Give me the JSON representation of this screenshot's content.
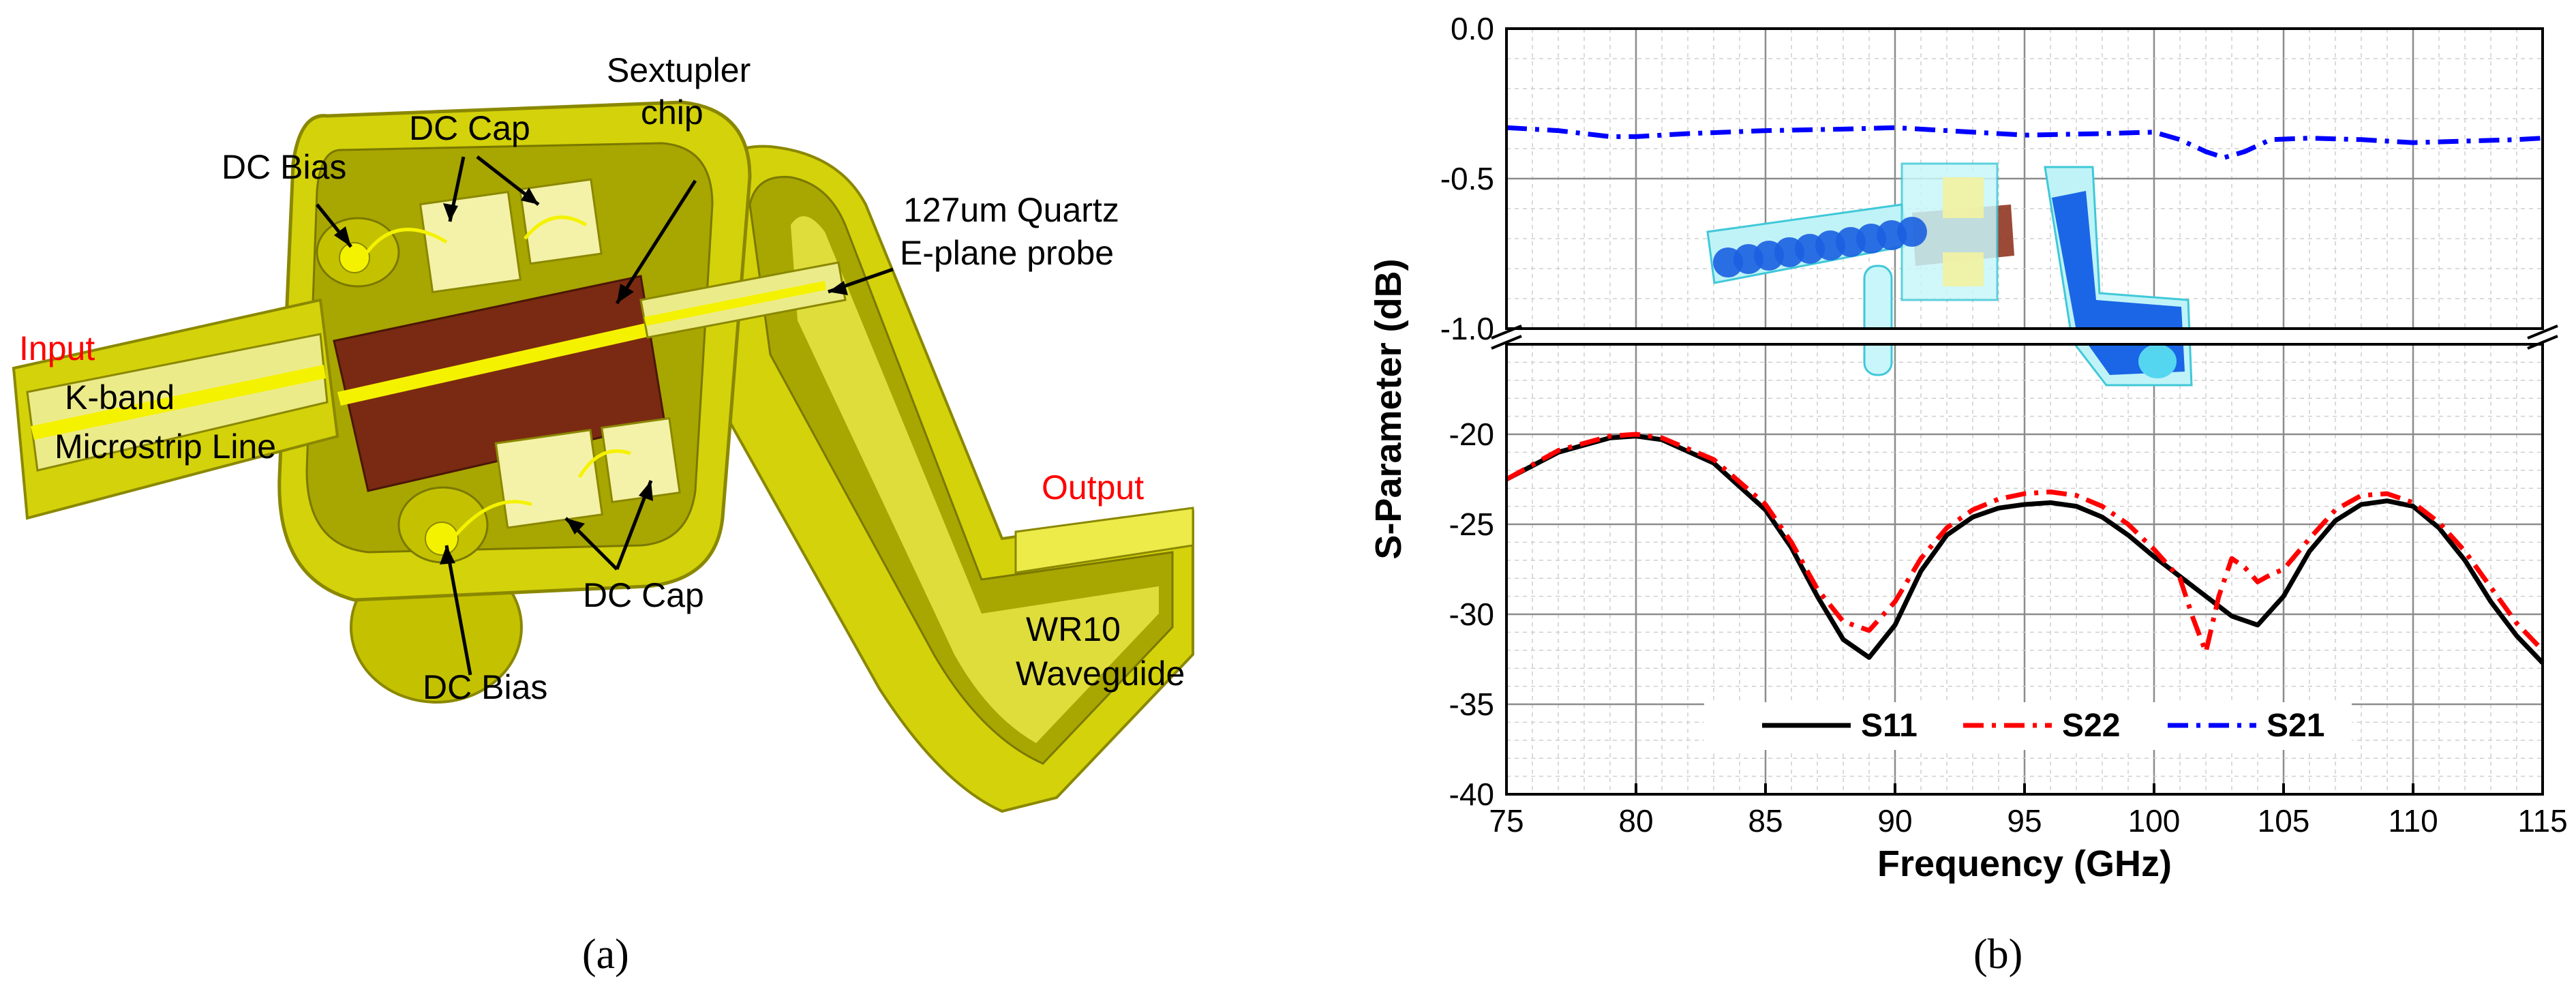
{
  "panel_a": {
    "caption": "(a)",
    "labels": {
      "input": "Input",
      "output": "Output",
      "dc_bias_top": "DC Bias",
      "dc_cap_top": "DC Cap",
      "sextupler_line1": "Sextupler",
      "sextupler_line2": "chip",
      "quartz_line1": "127um Quartz",
      "quartz_line2": "E-plane probe",
      "kband_line1": "K-band",
      "kband_line2": "Microstrip Line",
      "dc_cap_bottom": "DC Cap",
      "dc_bias_bottom": "DC Bias",
      "wr10_line1": "WR10",
      "wr10_line2": "Waveguide"
    },
    "colors": {
      "housing": "#d4d20a",
      "housing_dark": "#a8a600",
      "housing_light": "#eceb4a",
      "chip": "#7a2a12",
      "highlight": "#ff0000"
    }
  },
  "panel_b": {
    "caption": "(b)"
  },
  "chart_data": {
    "type": "line",
    "xlabel": "Frequency (GHz)",
    "ylabel": "S-Parameter  (dB)",
    "xlim": [
      75,
      115
    ],
    "xticks": [
      "75",
      "80",
      "85",
      "90",
      "95",
      "100",
      "105",
      "110",
      "115"
    ],
    "ylim_upper": [
      -1.0,
      0.0
    ],
    "yticks_upper": [
      "0.0",
      "-0.5",
      "-1.0"
    ],
    "ylim_lower": [
      -40,
      -15
    ],
    "yticks_lower": [
      "-20",
      "-25",
      "-30",
      "-35",
      "-40"
    ],
    "axis_break": true,
    "grid": true,
    "legend_position": "bottom-center",
    "series": [
      {
        "name": "S11",
        "color": "#000000",
        "style": "solid",
        "x": [
          75,
          77,
          79,
          80,
          81,
          83,
          85,
          86,
          87,
          88,
          89,
          90,
          91,
          92,
          93,
          94,
          95,
          96,
          97,
          98,
          99,
          100,
          101,
          102,
          103,
          104,
          105,
          106,
          107,
          108,
          109,
          110,
          111,
          112,
          113,
          114,
          115
        ],
        "y": [
          -22.5,
          -21.0,
          -20.2,
          -20.1,
          -20.3,
          -21.6,
          -24.2,
          -26.3,
          -29.0,
          -31.4,
          -32.4,
          -30.6,
          -27.6,
          -25.6,
          -24.6,
          -24.1,
          -23.9,
          -23.8,
          -24.0,
          -24.6,
          -25.6,
          -26.8,
          -27.9,
          -29.0,
          -30.1,
          -30.6,
          -29.0,
          -26.5,
          -24.8,
          -23.9,
          -23.7,
          -24.0,
          -25.2,
          -27.0,
          -29.3,
          -31.2,
          -32.7
        ]
      },
      {
        "name": "S22",
        "color": "#ff0000",
        "style": "dash-dot",
        "x": [
          75,
          77,
          79,
          80,
          81,
          83,
          85,
          86,
          87,
          88,
          89,
          90,
          91,
          92,
          93,
          94,
          95,
          96,
          97,
          98,
          99,
          100,
          101,
          101.5,
          102,
          102.5,
          103,
          103.5,
          104,
          104.5,
          105,
          106,
          107,
          108,
          109,
          110,
          111,
          112,
          113,
          114,
          115
        ],
        "y": [
          -22.5,
          -20.9,
          -20.1,
          -20.0,
          -20.2,
          -21.4,
          -23.9,
          -26.0,
          -28.6,
          -30.4,
          -30.9,
          -29.3,
          -26.9,
          -25.2,
          -24.2,
          -23.6,
          -23.3,
          -23.2,
          -23.4,
          -24.0,
          -25.0,
          -26.4,
          -28.0,
          -30.2,
          -32.1,
          -29.0,
          -26.9,
          -27.4,
          -28.2,
          -27.8,
          -27.5,
          -25.8,
          -24.2,
          -23.4,
          -23.3,
          -23.8,
          -24.9,
          -26.5,
          -28.5,
          -30.5,
          -32.0
        ]
      },
      {
        "name": "S21",
        "color": "#0000ff",
        "style": "dash-dot",
        "x": [
          75,
          77,
          79,
          80,
          82,
          85,
          88,
          90,
          92,
          95,
          98,
          100,
          101,
          102,
          102.7,
          103.5,
          104.5,
          106,
          108,
          110,
          112,
          114,
          115
        ],
        "y": [
          -0.33,
          -0.34,
          -0.36,
          -0.36,
          -0.35,
          -0.34,
          -0.335,
          -0.33,
          -0.34,
          -0.355,
          -0.35,
          -0.345,
          -0.37,
          -0.41,
          -0.43,
          -0.41,
          -0.37,
          -0.365,
          -0.37,
          -0.38,
          -0.375,
          -0.37,
          -0.365
        ]
      }
    ]
  }
}
